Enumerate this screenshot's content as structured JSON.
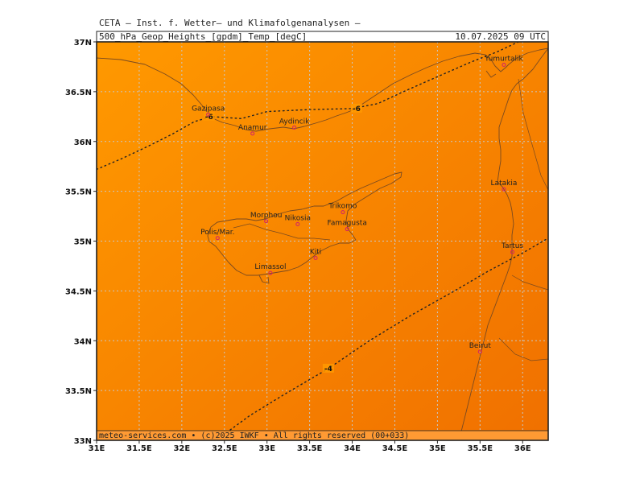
{
  "header": {
    "line1": "CETA — Inst. f. Wetter— und Klimafolgenanalysen —",
    "product": "500_hPa_Geop_Heights_[gpdm]_Temp_[degC]",
    "datetime": "10.07.2025 09 UTC"
  },
  "footer": {
    "credits": "meteo-services.com • (c)2025 IWKF • All rights reserved (00+033)"
  },
  "colors": {
    "field_warm": "#ff9900",
    "field_hot": "#f07000",
    "coast": "#7a4a20",
    "grid": "#c8c8c8",
    "contour": "#222222",
    "city_marker": "#d0206a"
  },
  "map": {
    "lon_range": [
      31.0,
      36.3
    ],
    "lat_range": [
      33.0,
      37.0
    ],
    "lon_ticks": [
      {
        "value": 31.0,
        "label": "31E"
      },
      {
        "value": 31.5,
        "label": "31.5E"
      },
      {
        "value": 32.0,
        "label": "32E"
      },
      {
        "value": 32.5,
        "label": "32.5E"
      },
      {
        "value": 33.0,
        "label": "33E"
      },
      {
        "value": 33.5,
        "label": "33.5E"
      },
      {
        "value": 34.0,
        "label": "34E"
      },
      {
        "value": 34.5,
        "label": "34.5E"
      },
      {
        "value": 35.0,
        "label": "35E"
      },
      {
        "value": 35.5,
        "label": "35.5E"
      },
      {
        "value": 36.0,
        "label": "36E"
      }
    ],
    "lat_ticks": [
      {
        "value": 37.0,
        "label": "37N"
      },
      {
        "value": 36.5,
        "label": "36.5N"
      },
      {
        "value": 36.0,
        "label": "36N"
      },
      {
        "value": 35.5,
        "label": "35.5N"
      },
      {
        "value": 35.0,
        "label": "35N"
      },
      {
        "value": 34.5,
        "label": "34.5N"
      },
      {
        "value": 34.0,
        "label": "34N"
      },
      {
        "value": 33.5,
        "label": "33.5N"
      },
      {
        "value": 33.0,
        "label": "33N"
      }
    ],
    "cities": [
      {
        "name": "Yumurtalik",
        "lon": 35.78,
        "lat": 36.77
      },
      {
        "name": "Gazipasa",
        "lon": 32.31,
        "lat": 36.27
      },
      {
        "name": "Anamur",
        "lon": 32.83,
        "lat": 36.08
      },
      {
        "name": "Aydincik",
        "lon": 33.32,
        "lat": 36.14
      },
      {
        "name": "Latakia",
        "lon": 35.78,
        "lat": 35.52
      },
      {
        "name": "Morphou",
        "lon": 32.99,
        "lat": 35.2
      },
      {
        "name": "Trikomo",
        "lon": 33.89,
        "lat": 35.29
      },
      {
        "name": "Nikosia",
        "lon": 33.36,
        "lat": 35.17
      },
      {
        "name": "Famagusta",
        "lon": 33.94,
        "lat": 35.12
      },
      {
        "name": "Polis/Mar.",
        "lon": 32.42,
        "lat": 35.03
      },
      {
        "name": "Kiti",
        "lon": 33.57,
        "lat": 34.83
      },
      {
        "name": "Tartus",
        "lon": 35.88,
        "lat": 34.89
      },
      {
        "name": "Limassol",
        "lon": 33.04,
        "lat": 34.68
      },
      {
        "name": "Beirut",
        "lon": 35.5,
        "lat": 33.89
      }
    ],
    "contours": [
      {
        "label": "-6",
        "label_points": [
          {
            "lon": 32.32,
            "lat": 36.25
          },
          {
            "lon": 34.05,
            "lat": 36.33
          }
        ],
        "path": [
          [
            31.0,
            35.72
          ],
          [
            31.3,
            35.83
          ],
          [
            31.6,
            35.95
          ],
          [
            31.9,
            36.08
          ],
          [
            32.15,
            36.2
          ],
          [
            32.35,
            36.25
          ],
          [
            32.7,
            36.23
          ],
          [
            33.0,
            36.3
          ],
          [
            33.5,
            36.32
          ],
          [
            34.0,
            36.33
          ],
          [
            34.3,
            36.38
          ],
          [
            34.6,
            36.5
          ],
          [
            35.0,
            36.65
          ],
          [
            35.4,
            36.8
          ],
          [
            35.7,
            36.9
          ],
          [
            35.95,
            37.0
          ]
        ]
      },
      {
        "label": "-4",
        "label_points": [
          {
            "lon": 33.72,
            "lat": 33.72
          }
        ],
        "path": [
          [
            32.4,
            33.0
          ],
          [
            32.8,
            33.25
          ],
          [
            33.2,
            33.46
          ],
          [
            33.72,
            33.72
          ],
          [
            34.2,
            34.0
          ],
          [
            34.7,
            34.26
          ],
          [
            35.2,
            34.5
          ],
          [
            35.6,
            34.7
          ],
          [
            36.0,
            34.88
          ],
          [
            36.3,
            35.03
          ]
        ]
      }
    ]
  }
}
